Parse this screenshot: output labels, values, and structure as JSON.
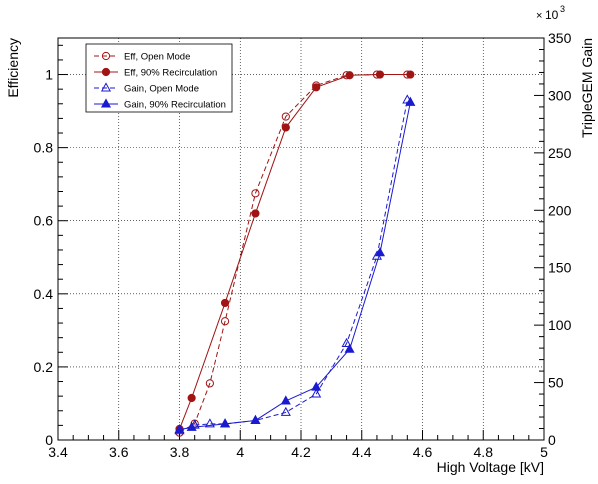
{
  "chart_data": {
    "type": "line",
    "xlabel": "High Voltage [kV]",
    "ylabel": "Efficiency",
    "y2label": "TripleGEM Gain",
    "y2_multiplier": "10",
    "y2_multiplier_exp": "3",
    "xlim": [
      3.4,
      5.0
    ],
    "ylim": [
      0,
      1.1
    ],
    "y2lim": [
      0,
      350
    ],
    "x_ticks": [
      3.4,
      3.6,
      3.8,
      4.0,
      4.2,
      4.4,
      4.6,
      4.8,
      5.0
    ],
    "x_tick_labels": [
      "3.4",
      "3.6",
      "3.8",
      "4",
      "4.2",
      "4.4",
      "4.6",
      "4.8",
      "5"
    ],
    "y_ticks": [
      0,
      0.2,
      0.4,
      0.6,
      0.8,
      1.0
    ],
    "y_tick_labels": [
      "0",
      "0.2",
      "0.4",
      "0.6",
      "0.8",
      "1"
    ],
    "y2_ticks": [
      0,
      50,
      100,
      150,
      200,
      250,
      300,
      350
    ],
    "y2_tick_labels": [
      "0",
      "50",
      "100",
      "150",
      "200",
      "250",
      "300",
      "350"
    ],
    "grid": true,
    "legend_position": "top-left",
    "series": [
      {
        "name": "Eff, Open Mode",
        "axis": "left",
        "color": "#a01414",
        "dash": true,
        "marker": "open-circle",
        "x": [
          3.8,
          3.85,
          3.9,
          3.95,
          4.05,
          4.15,
          4.25,
          4.35,
          4.45,
          4.55
        ],
        "y": [
          0.02,
          0.045,
          0.155,
          0.325,
          0.675,
          0.885,
          0.97,
          0.998,
          1.0,
          1.0
        ]
      },
      {
        "name": "Eff, 90% Recirculation",
        "axis": "left",
        "color": "#a01414",
        "dash": false,
        "marker": "filled-circle",
        "x": [
          3.8,
          3.84,
          3.95,
          4.05,
          4.15,
          4.25,
          4.36,
          4.46,
          4.56
        ],
        "y": [
          0.03,
          0.115,
          0.375,
          0.62,
          0.855,
          0.965,
          0.998,
          1.0,
          1.0
        ]
      },
      {
        "name": "Gain, Open Mode",
        "axis": "right",
        "color": "#1a1ad0",
        "dash": true,
        "marker": "open-triangle",
        "x": [
          3.8,
          3.85,
          3.9,
          3.95,
          4.05,
          4.15,
          4.25,
          4.35,
          4.45,
          4.55
        ],
        "y": [
          8,
          13,
          14,
          14,
          17,
          24,
          40,
          84,
          160,
          296
        ]
      },
      {
        "name": "Gain, 90% Recirculation",
        "axis": "right",
        "color": "#1a1ad0",
        "dash": false,
        "marker": "filled-triangle",
        "x": [
          3.8,
          3.84,
          3.95,
          4.05,
          4.15,
          4.25,
          4.36,
          4.46,
          4.56
        ],
        "y": [
          9,
          11,
          14,
          17,
          34,
          46,
          79,
          163,
          294
        ]
      }
    ]
  }
}
